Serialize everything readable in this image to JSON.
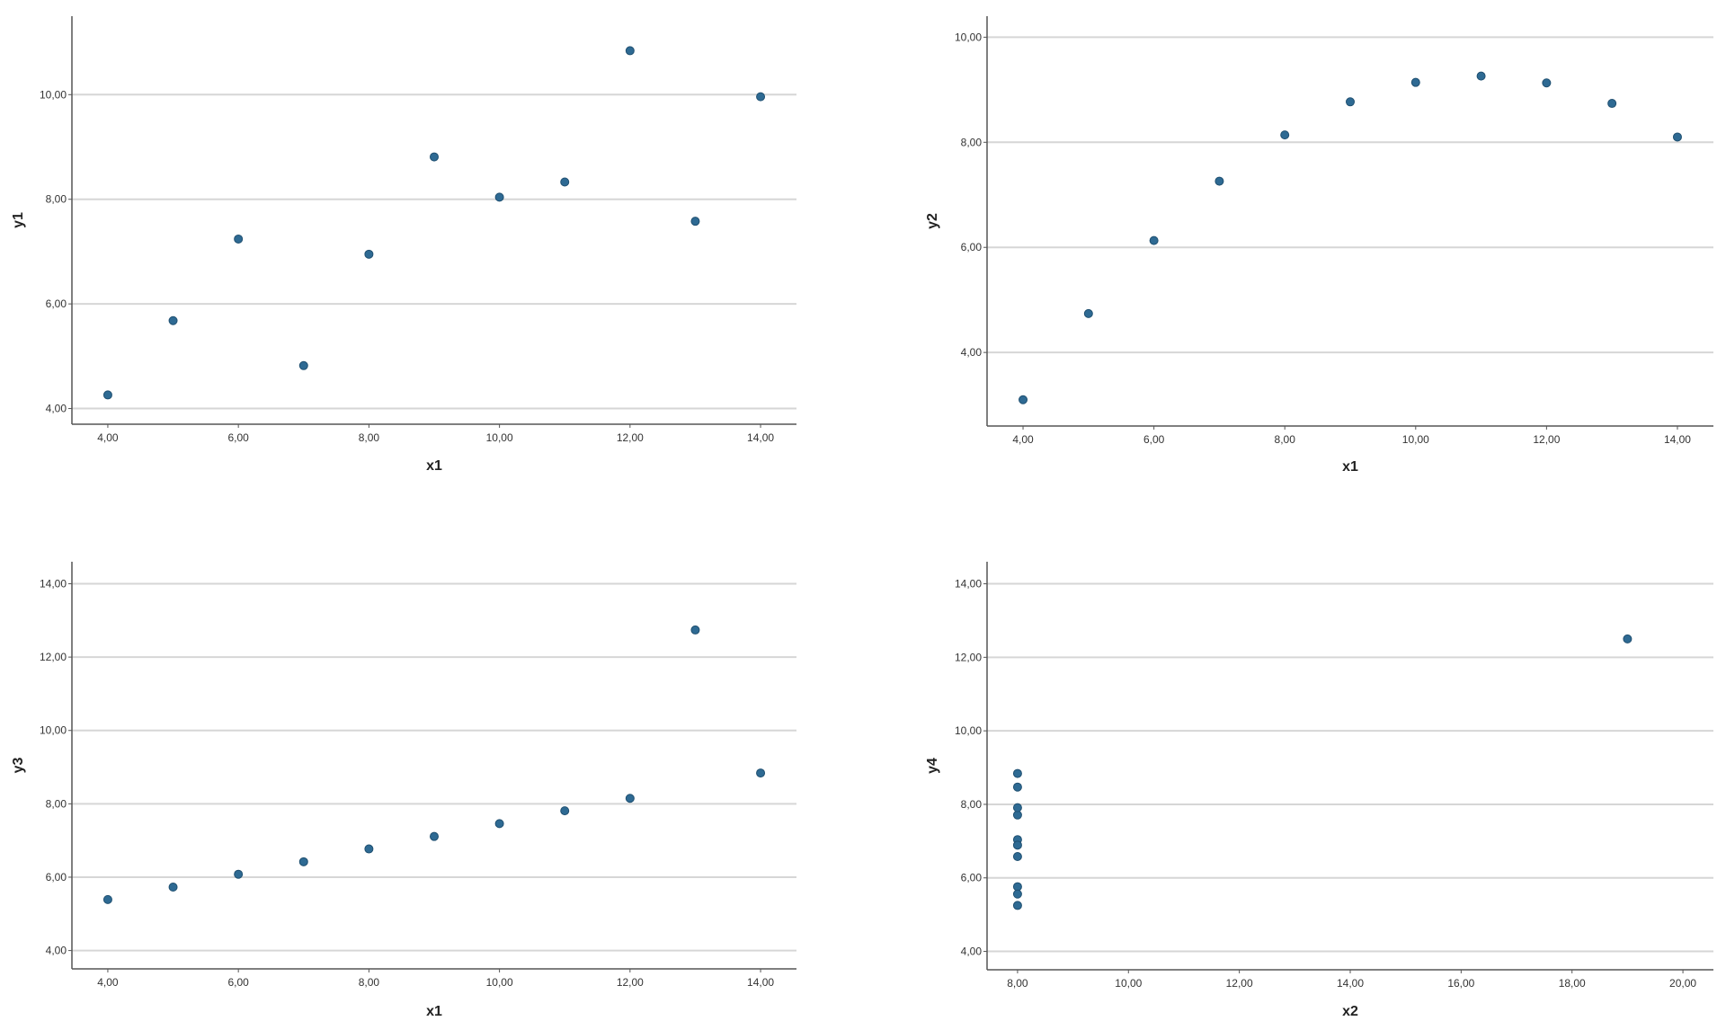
{
  "chart_data": [
    {
      "type": "scatter",
      "xlabel": "x1",
      "ylabel": "y1",
      "xlim": [
        3.45,
        14.55
      ],
      "ylim": [
        3.7,
        11.5
      ],
      "xticks": [
        "4,00",
        "6,00",
        "8,00",
        "10,00",
        "12,00",
        "14,00"
      ],
      "yticks": [
        "4,00",
        "6,00",
        "8,00",
        "10,00"
      ],
      "grid": "horizontal",
      "x": [
        4,
        5,
        6,
        7,
        8,
        9,
        10,
        11,
        12,
        13,
        14
      ],
      "y": [
        4.26,
        5.68,
        7.24,
        4.82,
        6.95,
        8.81,
        8.04,
        8.33,
        10.84,
        7.58,
        9.96
      ],
      "marker_color": "#2e6a93"
    },
    {
      "type": "scatter",
      "xlabel": "x1",
      "ylabel": "y2",
      "xlim": [
        3.45,
        14.55
      ],
      "ylim": [
        2.6,
        10.4
      ],
      "xticks": [
        "4,00",
        "6,00",
        "8,00",
        "10,00",
        "12,00",
        "14,00"
      ],
      "yticks": [
        "4,00",
        "6,00",
        "8,00",
        "10,00"
      ],
      "grid": "horizontal",
      "x": [
        4,
        5,
        6,
        7,
        8,
        9,
        10,
        11,
        12,
        13,
        14
      ],
      "y": [
        3.1,
        4.74,
        6.13,
        7.26,
        8.14,
        8.77,
        9.14,
        9.26,
        9.13,
        8.74,
        8.1
      ],
      "marker_color": "#2e6a93"
    },
    {
      "type": "scatter",
      "xlabel": "x1",
      "ylabel": "y3",
      "xlim": [
        3.45,
        14.55
      ],
      "ylim": [
        3.5,
        14.6
      ],
      "xticks": [
        "4,00",
        "6,00",
        "8,00",
        "10,00",
        "12,00",
        "14,00"
      ],
      "yticks": [
        "4,00",
        "6,00",
        "8,00",
        "10,00",
        "12,00",
        "14,00"
      ],
      "grid": "horizontal",
      "x": [
        4,
        5,
        6,
        7,
        8,
        9,
        10,
        11,
        12,
        13,
        14
      ],
      "y": [
        5.39,
        5.73,
        6.08,
        6.42,
        6.77,
        7.11,
        7.46,
        7.81,
        8.15,
        12.74,
        8.84
      ],
      "marker_color": "#2e6a93"
    },
    {
      "type": "scatter",
      "xlabel": "x2",
      "ylabel": "y4",
      "xlim": [
        7.45,
        20.55
      ],
      "ylim": [
        3.5,
        14.6
      ],
      "xticks": [
        "8,00",
        "10,00",
        "12,00",
        "14,00",
        "16,00",
        "18,00",
        "20,00"
      ],
      "yticks": [
        "4,00",
        "6,00",
        "8,00",
        "10,00",
        "12,00",
        "14,00"
      ],
      "grid": "horizontal",
      "x": [
        8,
        8,
        8,
        8,
        8,
        8,
        8,
        8,
        8,
        8,
        19
      ],
      "y": [
        6.58,
        5.76,
        7.71,
        8.84,
        8.47,
        7.04,
        5.25,
        5.56,
        7.91,
        6.89,
        12.5
      ],
      "marker_color": "#2e6a93"
    }
  ]
}
